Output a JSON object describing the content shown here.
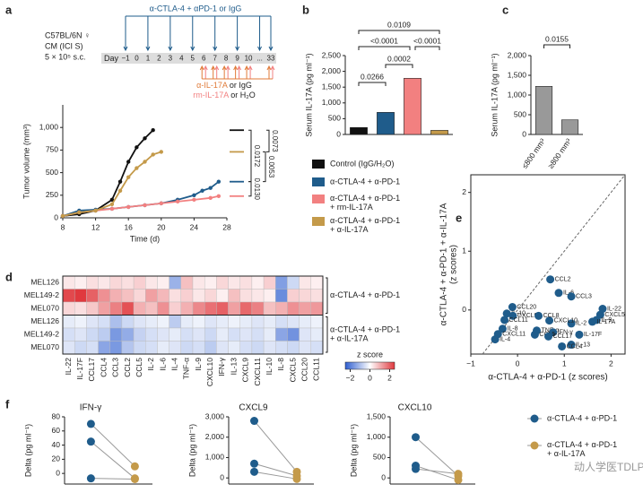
{
  "panels": [
    "a",
    "b",
    "c",
    "d",
    "e",
    "f"
  ],
  "schematic": {
    "strain": "C57BL/6N ♀",
    "model": "CM (ICI S)",
    "dose": "5 × 10⁵ s.c.",
    "treatment": "α-CTLA-4 + αPD-1 or IgG",
    "day_label": "Day",
    "days": [
      "−1",
      "0",
      "1",
      "2",
      "3",
      "4",
      "5",
      "6",
      "7",
      "8",
      "9",
      "10",
      "...",
      "33"
    ],
    "anti": "α-IL-17A",
    "anti_ctrl": " or IgG",
    "rm": "rm-IL-17A",
    "rm_ctrl": " or H₂O"
  },
  "watermark": "动人学医TDLP",
  "chart_data": [
    {
      "type": "line",
      "xlabel": "Time (d)",
      "ylabel": "Tumor volume (mm³)",
      "xlim": [
        8,
        28
      ],
      "xticks": [
        8,
        12,
        16,
        20,
        24,
        28
      ],
      "ylim": [
        0,
        1250
      ],
      "yticks": [
        0,
        250,
        500,
        750,
        {
          "value": 1000,
          "label": "1,000"
        }
      ],
      "series": [
        {
          "color": "#111111",
          "x": [
            8,
            10,
            12,
            14,
            15,
            16,
            17,
            18,
            19
          ],
          "values": [
            20,
            40,
            80,
            200,
            400,
            620,
            780,
            880,
            970
          ]
        },
        {
          "color": "#1f5c8b",
          "x": [
            8,
            10,
            12,
            14,
            16,
            18,
            20,
            22,
            24,
            25,
            26,
            27
          ],
          "values": [
            20,
            80,
            90,
            100,
            120,
            140,
            160,
            200,
            250,
            300,
            330,
            400
          ]
        },
        {
          "color": "#f28080",
          "x": [
            8,
            10,
            12,
            14,
            16,
            18,
            20,
            22,
            24,
            26,
            27
          ],
          "values": [
            20,
            60,
            80,
            100,
            120,
            140,
            160,
            180,
            200,
            220,
            240
          ]
        },
        {
          "color": "#c49a4a",
          "x": [
            8,
            10,
            12,
            14,
            15,
            16,
            17,
            18,
            19,
            20
          ],
          "values": [
            20,
            60,
            80,
            150,
            300,
            450,
            550,
            620,
            700,
            730
          ]
        }
      ],
      "annotations": [
        "0.0172",
        "0.0073",
        "0.0130",
        "0.0053"
      ]
    },
    {
      "type": "bar",
      "ylabel": "Serum IL-17A (pg ml⁻¹)",
      "ylim": [
        0,
        2500
      ],
      "yticks": [
        0,
        500,
        {
          "value": 1000,
          "label": "1,000"
        },
        {
          "value": 1500,
          "label": "1,500"
        },
        {
          "value": 2000,
          "label": "2,000"
        },
        {
          "value": 2500,
          "label": "2,500"
        }
      ],
      "series": [
        {
          "name": "Control (IgG/H₂O)",
          "color": "#111111",
          "values": [
            220
          ]
        },
        {
          "name": "α-CTLA-4 + α-PD-1",
          "color": "#1f5c8b",
          "values": [
            700
          ]
        },
        {
          "name": "α-CTLA-4 + α-PD-1 + rm-IL-17A",
          "color": "#f28080",
          "values": [
            1780
          ]
        },
        {
          "name": "α-CTLA-4 + α-PD-1 + α-IL-17A",
          "color": "#c49a4a",
          "values": [
            130
          ]
        }
      ],
      "annotations": [
        "0.0266",
        "0.0002",
        "<0.0001",
        "<0.0001",
        "0.0109"
      ]
    },
    {
      "type": "bar",
      "ylabel": "Serum IL-17A (pg ml⁻¹)",
      "categories": [
        "≤800 mm³",
        "≥800 mm³"
      ],
      "values": [
        1220,
        370
      ],
      "color": "#999999",
      "ylim": [
        0,
        2000
      ],
      "yticks": [
        0,
        500,
        {
          "value": 1000,
          "label": "1,000"
        },
        {
          "value": 1500,
          "label": "1,500"
        },
        {
          "value": 2000,
          "label": "2,000"
        }
      ],
      "annotations": [
        "0.0155"
      ]
    },
    {
      "type": "heatmap",
      "x": [
        "IL-22",
        "IL-17F",
        "CCL17",
        "CCL4",
        "CCL3",
        "CCL2",
        "CCL5",
        "IL-2",
        "IL-6",
        "IL-4",
        "TNF-α",
        "IL-9",
        "CXCL10",
        "IFN-γ",
        "IL-13",
        "CXCL9",
        "CXCL11",
        "IL-10",
        "IL-8",
        "CXCL5",
        "CCL20",
        "CCL11"
      ],
      "y": [
        "MEL126",
        "MEL149-2",
        "MEL070",
        "MEL126",
        "MEL149-2",
        "MEL070"
      ],
      "row_groups": [
        "α-CTLA-4 + α-PD-1",
        "α-CTLA-4 + α-PD-1 + α-IL-17A"
      ],
      "values": [
        [
          0.3,
          0.2,
          0.4,
          0.3,
          0.5,
          0.4,
          0.6,
          0.3,
          0.2,
          -1.2,
          0.8,
          0.3,
          0.2,
          0.5,
          0.3,
          0.4,
          0.2,
          0.6,
          -1.5,
          -0.6,
          0.3,
          0.2
        ],
        [
          2.3,
          2.5,
          2.0,
          1.4,
          1.0,
          0.8,
          0.5,
          1.2,
          0.9,
          0.4,
          0.6,
          0.3,
          0.5,
          0.2,
          0.8,
          0.4,
          0.3,
          0.2,
          -1.8,
          0.6,
          0.5,
          0.4
        ],
        [
          0.5,
          0.4,
          0.7,
          1.2,
          1.6,
          2.2,
          1.0,
          0.8,
          1.4,
          0.6,
          1.0,
          1.5,
          1.8,
          2.0,
          1.2,
          1.9,
          1.6,
          0.8,
          1.0,
          1.4,
          1.2,
          1.3
        ],
        [
          -0.3,
          -0.2,
          -0.4,
          -0.5,
          -1.0,
          -0.6,
          -0.4,
          -0.3,
          -0.2,
          -0.8,
          -0.3,
          -0.2,
          -0.4,
          -0.3,
          -0.2,
          -0.3,
          -0.4,
          -0.3,
          -0.5,
          -0.4,
          -0.3,
          -0.2
        ],
        [
          -0.5,
          -0.4,
          -0.6,
          -0.8,
          -1.6,
          -1.3,
          -0.7,
          -0.5,
          -0.4,
          -0.3,
          -0.5,
          -0.4,
          -0.6,
          -0.3,
          -0.5,
          -0.4,
          -0.5,
          -0.3,
          -1.4,
          -1.7,
          -0.4,
          -0.3
        ],
        [
          -0.4,
          -0.6,
          -0.5,
          -1.4,
          -1.6,
          -0.9,
          -0.6,
          -0.5,
          -0.3,
          -0.4,
          -0.6,
          -0.5,
          -0.8,
          -0.4,
          -0.3,
          -0.5,
          -0.6,
          -0.4,
          -0.5,
          -0.6,
          -0.4,
          -0.5
        ]
      ],
      "colorbar_title": "z score",
      "zlim": [
        -2.5,
        2.5
      ],
      "zticks": [
        {
          "value": -2,
          "label": "−2"
        },
        0,
        2
      ],
      "colors": [
        "#2f5fd0",
        "#ffffff",
        "#e0393e"
      ]
    },
    {
      "type": "scatter",
      "xlabel": "α-CTLA-4 + α-PD-1 (z scores)",
      "ylabel": "α-CTLA-4 + α-PD-1 + α-IL-17A",
      "ylabel2": "(z scores)",
      "color": "#1f5c8b",
      "xlim": [
        -1,
        2.3
      ],
      "xticks": [
        {
          "value": -1,
          "label": "−1"
        },
        0,
        1,
        2
      ],
      "ylim": [
        -0.75,
        2.3
      ],
      "yticks": [
        0,
        1,
        2
      ],
      "labels": [
        "CCL2",
        "IL-6",
        "CCL3",
        "IL-22",
        "CXCL5",
        "IL-9",
        "IL-17A",
        "IL-2",
        "IL-17F",
        "IL-13",
        "CCL20",
        "IL-10",
        "CXCL9",
        "CCL11",
        "CXCL10",
        "CCL8",
        "IL-8",
        "TNF-α",
        "IFN-γ",
        "CXCL11",
        "CCL5",
        "CCL17",
        "IL-4",
        "CCL4"
      ],
      "x": [
        0.7,
        0.88,
        1.15,
        1.82,
        1.77,
        1.69,
        1.6,
        1.15,
        1.32,
        1.15,
        -0.11,
        -0.23,
        -0.1,
        -0.28,
        0.68,
        0.45,
        -0.32,
        0.41,
        0.76,
        -0.42,
        0.37,
        0.66,
        -0.48,
        0.95
      ],
      "values": [
        0.52,
        0.29,
        0.23,
        0.02,
        -0.08,
        -0.17,
        -0.2,
        -0.23,
        -0.42,
        -0.59,
        0.05,
        -0.06,
        -0.1,
        -0.17,
        -0.18,
        -0.1,
        -0.32,
        -0.35,
        -0.38,
        -0.41,
        -0.42,
        -0.45,
        -0.5,
        -0.62
      ]
    },
    {
      "type": "paired",
      "title": "IFN-γ",
      "ylabel": "Delta (pg ml⁻¹)",
      "ylim": [
        -15,
        80
      ],
      "yticks": [
        0,
        20,
        40,
        60,
        80
      ],
      "series": [
        {
          "name": "α-CTLA-4 + α-PD-1",
          "color": "#1f5c8b",
          "values": [
            70,
            45,
            -7
          ]
        },
        {
          "name": "α-CTLA-4 + α-PD-1 + α-IL-17A",
          "color": "#c49a4a",
          "values": [
            10,
            -7,
            -8
          ]
        }
      ]
    },
    {
      "type": "paired",
      "title": "CXCL9",
      "ylabel": "Delta (pg ml⁻¹)",
      "ylim": [
        -300,
        3000
      ],
      "yticks": [
        0,
        {
          "value": 1000,
          "label": "1,000"
        },
        {
          "value": 2000,
          "label": "2,000"
        },
        {
          "value": 3000,
          "label": "3,000"
        }
      ],
      "series": [
        {
          "color": "#1f5c8b",
          "values": [
            2800,
            700,
            300
          ]
        },
        {
          "color": "#c49a4a",
          "values": [
            300,
            100,
            -50
          ]
        }
      ]
    },
    {
      "type": "paired",
      "title": "CXCL10",
      "ylabel": "Delta (pg ml⁻¹)",
      "ylim": [
        -150,
        1500
      ],
      "yticks": [
        0,
        500,
        {
          "value": 1000,
          "label": "1,000"
        },
        {
          "value": 1500,
          "label": "1,500"
        }
      ],
      "series": [
        {
          "color": "#1f5c8b",
          "values": [
            1000,
            300,
            220
          ]
        },
        {
          "color": "#c49a4a",
          "values": [
            50,
            -50,
            100
          ]
        }
      ]
    }
  ]
}
